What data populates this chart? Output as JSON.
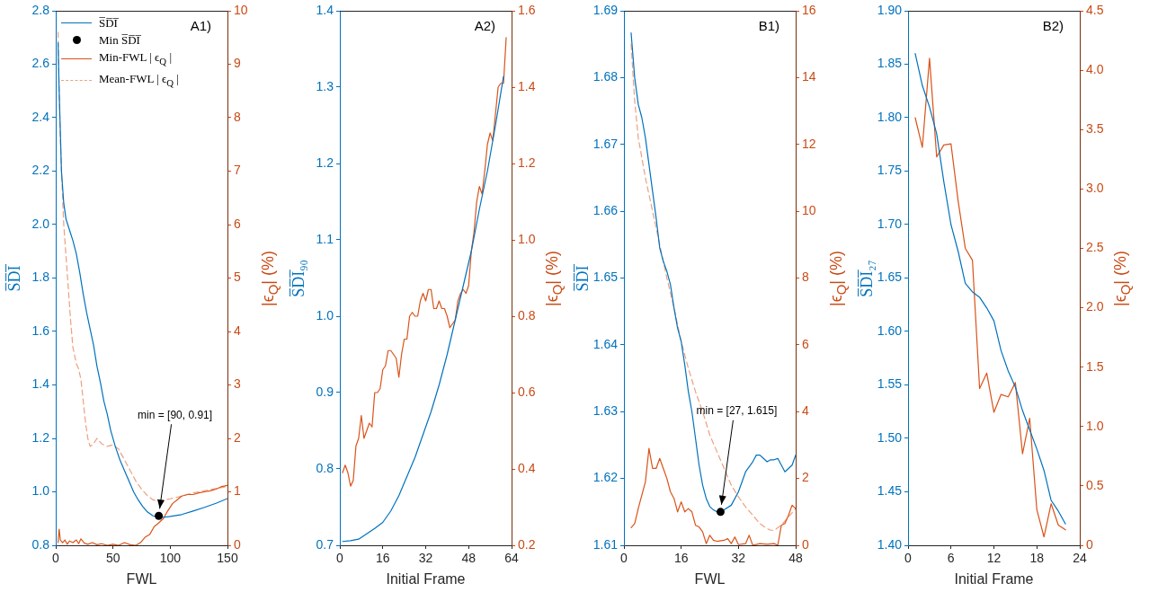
{
  "chart_data": [
    {
      "type": "line",
      "xlabel": "FWL",
      "ylabel": "S̅D̅I̅",
      "y2label": "|ϵ$_{Q}$| (%)",
      "legend": "top left",
      "annotations": [
        "A1)",
        {
          "text": "min = [90, 0.91]",
          "x": 90,
          "y": 0.91
        }
      ],
      "xlim": [
        0,
        150
      ],
      "xticks": [
        0,
        50,
        100,
        150
      ],
      "ylim": [
        0.8,
        2.8
      ],
      "yticks": [
        0.8,
        {
          "value": 1,
          "label": "1.0"
        },
        1.2,
        1.4,
        1.6,
        1.8,
        {
          "value": 2,
          "label": "2.0"
        },
        2.2,
        2.4,
        2.6,
        2.8
      ],
      "y2lim": [
        0,
        10
      ],
      "y2ticks": [
        0,
        1,
        2,
        3,
        4,
        5,
        6,
        7,
        8,
        9,
        10
      ],
      "series": [
        {
          "name": "S̅D̅I̅",
          "color": "#0072bd",
          "line_style": "solid",
          "x": [
            2,
            3,
            5,
            7,
            9,
            12,
            15,
            18,
            21,
            24,
            27,
            30,
            33,
            36,
            39,
            42,
            45,
            48,
            52,
            56,
            60,
            64,
            68,
            72,
            76,
            80,
            85,
            90,
            95,
            100,
            110,
            120,
            130,
            140,
            150
          ],
          "values": [
            2.68,
            2.5,
            2.2,
            2.08,
            2.02,
            1.98,
            1.94,
            1.89,
            1.82,
            1.74,
            1.67,
            1.61,
            1.55,
            1.47,
            1.41,
            1.34,
            1.29,
            1.23,
            1.17,
            1.12,
            1.08,
            1.04,
            1.0,
            0.97,
            0.945,
            0.925,
            0.91,
            0.905,
            0.905,
            0.908,
            0.915,
            0.928,
            0.942,
            0.957,
            0.975
          ]
        },
        {
          "name": "Min S̅D̅I̅",
          "type": "scatter",
          "marker": "circle",
          "color": "#000000",
          "x": [
            90
          ],
          "values": [
            0.91
          ]
        },
        {
          "name": "Min-FWL | ϵ$_{Q}$ |",
          "color": "#d95319",
          "axis": "y2",
          "line_style": "solid",
          "x": [
            2,
            3,
            4,
            6,
            8,
            10,
            12,
            15,
            18,
            20,
            22,
            25,
            28,
            32,
            36,
            40,
            45,
            50,
            55,
            60,
            65,
            70,
            74,
            78,
            82,
            86,
            90,
            94,
            98,
            102,
            106,
            110,
            115,
            120,
            125,
            130,
            135,
            140,
            145,
            150
          ],
          "values": [
            0.05,
            0.3,
            0.1,
            0.05,
            0.1,
            0.02,
            0.08,
            0.05,
            0.1,
            0.03,
            0.12,
            0.04,
            0.02,
            0.05,
            0.01,
            0.03,
            0.0,
            0.02,
            0.0,
            0.05,
            0.01,
            0.0,
            0.05,
            0.15,
            0.2,
            0.35,
            0.42,
            0.5,
            0.65,
            0.78,
            0.85,
            0.92,
            0.95,
            0.95,
            0.98,
            1.0,
            1.02,
            1.05,
            1.1,
            1.12
          ]
        },
        {
          "name": "Mean-FWL | ϵ$_{Q}$ |",
          "color": "#eda07e",
          "axis": "y2",
          "line_style": "dashed",
          "x": [
            2,
            3,
            4,
            5,
            7,
            9,
            11,
            13,
            15,
            18,
            20,
            22,
            24,
            26,
            28,
            30,
            33,
            36,
            40,
            45,
            50,
            55,
            60,
            65,
            70,
            75,
            80,
            85,
            90,
            95,
            100,
            110,
            120,
            130,
            140,
            150
          ],
          "values": [
            9.6,
            8.5,
            7.6,
            7.0,
            6.0,
            5.4,
            4.8,
            4.2,
            3.7,
            3.4,
            3.3,
            3.1,
            2.7,
            2.3,
            2.0,
            1.85,
            1.9,
            2.0,
            1.9,
            1.85,
            1.88,
            1.8,
            1.6,
            1.4,
            1.2,
            1.05,
            0.93,
            0.85,
            0.83,
            0.85,
            0.87,
            0.92,
            0.98,
            1.02,
            1.06,
            1.1
          ]
        }
      ]
    },
    {
      "type": "line",
      "xlabel": "Initial Frame",
      "ylabel": "S̅D̅I̅₉₀",
      "y2label": "|ϵ$_{Q}$| (%)",
      "annotations": [
        "A2)"
      ],
      "xlim": [
        0,
        64
      ],
      "xticks": [
        0,
        16,
        32,
        48,
        64
      ],
      "ylim": [
        0.7,
        1.4
      ],
      "yticks": [
        0.7,
        0.8,
        0.9,
        {
          "value": 1,
          "label": "1.0"
        },
        1.1,
        1.2,
        1.3,
        1.4
      ],
      "y2lim": [
        0.2,
        1.6
      ],
      "y2ticks": [
        0.2,
        0.4,
        0.6,
        0.8,
        {
          "value": 1,
          "label": "1.0"
        },
        1.2,
        1.4,
        1.6
      ],
      "series": [
        {
          "color": "#0072bd",
          "line_style": "solid",
          "x": [
            1,
            4,
            7,
            10,
            13,
            16,
            19,
            22,
            25,
            28,
            31,
            34,
            37,
            40,
            43,
            46,
            49,
            52,
            55,
            58,
            61
          ],
          "values": [
            0.705,
            0.706,
            0.708,
            0.715,
            0.722,
            0.73,
            0.745,
            0.765,
            0.79,
            0.815,
            0.845,
            0.875,
            0.91,
            0.95,
            0.995,
            1.04,
            1.085,
            1.14,
            1.19,
            1.25,
            1.314
          ]
        },
        {
          "color": "#d95319",
          "axis": "y2",
          "line_style": "solid",
          "x": [
            1,
            2,
            3,
            4,
            5,
            6,
            7,
            8,
            9,
            10,
            11,
            12,
            13,
            14,
            15,
            16,
            17,
            18,
            19,
            20,
            21,
            22,
            23,
            24,
            25,
            26,
            27,
            28,
            29,
            30,
            31,
            32,
            33,
            34,
            35,
            36,
            37,
            38,
            39,
            40,
            41,
            42,
            43,
            44,
            45,
            46,
            47,
            48,
            49,
            50,
            51,
            52,
            53,
            54,
            55,
            56,
            57,
            58,
            59,
            60,
            61,
            62
          ],
          "values": [
            0.39,
            0.41,
            0.39,
            0.355,
            0.37,
            0.46,
            0.48,
            0.54,
            0.48,
            0.5,
            0.52,
            0.51,
            0.6,
            0.6,
            0.61,
            0.66,
            0.67,
            0.71,
            0.71,
            0.7,
            0.69,
            0.64,
            0.7,
            0.74,
            0.74,
            0.8,
            0.81,
            0.8,
            0.8,
            0.84,
            0.86,
            0.84,
            0.87,
            0.87,
            0.82,
            0.82,
            0.84,
            0.82,
            0.82,
            0.8,
            0.77,
            0.78,
            0.79,
            0.84,
            0.86,
            0.87,
            0.86,
            0.88,
            0.97,
            1.02,
            1.1,
            1.14,
            1.12,
            1.18,
            1.25,
            1.28,
            1.26,
            1.33,
            1.4,
            1.41,
            1.41,
            1.53
          ]
        }
      ]
    },
    {
      "type": "line",
      "xlabel": "FWL",
      "ylabel": "S̅D̅I̅",
      "y2label": "|ϵ$_{Q}$| (%)",
      "annotations": [
        "B1)",
        {
          "text": "min = [27, 1.615]",
          "x": 27,
          "y": 1.615
        }
      ],
      "xlim": [
        0,
        48
      ],
      "xticks": [
        0,
        16,
        32,
        48
      ],
      "ylim": [
        1.61,
        1.69
      ],
      "yticks": [
        1.61,
        1.62,
        1.63,
        1.64,
        1.65,
        1.66,
        1.67,
        1.68,
        1.69
      ],
      "y2lim": [
        0,
        16
      ],
      "y2ticks": [
        0,
        2,
        4,
        6,
        8,
        10,
        12,
        14,
        16
      ],
      "series": [
        {
          "color": "#0072bd",
          "line_style": "solid",
          "x": [
            2,
            3,
            4,
            5,
            6,
            7,
            8,
            9,
            10,
            11,
            12,
            13,
            14,
            15,
            16,
            17,
            18,
            19,
            20,
            21,
            22,
            23,
            24,
            25,
            26,
            27,
            28,
            30,
            32,
            34,
            36,
            37,
            38,
            39,
            40,
            41,
            42,
            43,
            44,
            45,
            46,
            47,
            48
          ],
          "values": [
            1.6867,
            1.68,
            1.676,
            1.674,
            1.671,
            1.667,
            1.663,
            1.659,
            1.6545,
            1.6525,
            1.651,
            1.649,
            1.6455,
            1.6425,
            1.6405,
            1.637,
            1.633,
            1.63,
            1.626,
            1.622,
            1.619,
            1.617,
            1.6158,
            1.6153,
            1.615,
            1.615,
            1.6153,
            1.616,
            1.618,
            1.621,
            1.6225,
            1.6235,
            1.6235,
            1.623,
            1.6225,
            1.6228,
            1.6228,
            1.623,
            1.622,
            1.621,
            1.6215,
            1.622,
            1.6235
          ]
        },
        {
          "type": "scatter",
          "marker": "circle",
          "color": "#000000",
          "x": [
            27
          ],
          "values": [
            1.615
          ]
        },
        {
          "color": "#d95319",
          "axis": "y2",
          "line_style": "solid",
          "x": [
            2,
            3,
            4,
            5,
            6,
            7,
            8,
            9,
            10,
            11,
            12,
            13,
            14,
            15,
            16,
            17,
            18,
            19,
            20,
            21,
            22,
            23,
            24,
            25,
            26,
            28,
            29,
            30,
            31,
            32,
            34,
            35,
            36,
            38,
            40,
            42,
            43,
            44,
            45,
            46,
            47,
            48
          ],
          "values": [
            0.53,
            0.65,
            1.1,
            1.5,
            1.9,
            2.9,
            2.3,
            2.3,
            2.6,
            2.3,
            2.0,
            1.6,
            1.4,
            1.0,
            1.3,
            1.0,
            1.1,
            1.0,
            0.6,
            0.55,
            0.4,
            0.05,
            0.3,
            0.15,
            0.12,
            0.15,
            0.2,
            0.05,
            0.25,
            0.02,
            0.05,
            0.3,
            0.0,
            0.05,
            0.03,
            0.05,
            0.0,
            0.6,
            0.65,
            0.9,
            1.2,
            1.1
          ]
        },
        {
          "color": "#eda07e",
          "axis": "y2",
          "line_style": "dashed",
          "x": [
            2,
            3,
            4,
            6,
            8,
            10,
            12,
            14,
            16,
            18,
            20,
            22,
            24,
            26,
            28,
            30,
            32,
            34,
            36,
            38,
            40,
            41,
            42,
            44,
            46,
            48
          ],
          "values": [
            15.0,
            13.3,
            12.2,
            11.0,
            10.0,
            9.0,
            8.0,
            7.1,
            6.1,
            5.3,
            4.6,
            4.0,
            3.3,
            2.8,
            2.3,
            1.8,
            1.45,
            1.15,
            0.9,
            0.65,
            0.5,
            0.45,
            0.45,
            0.6,
            0.85,
            1.1
          ]
        }
      ]
    },
    {
      "type": "line",
      "xlabel": "Initial Frame",
      "ylabel": "S̅D̅I̅₂₇",
      "y2label": "|ϵ$_{Q}$| (%)",
      "annotations": [
        "B2)"
      ],
      "xlim": [
        0,
        24
      ],
      "xticks": [
        0,
        6,
        12,
        18,
        24
      ],
      "ylim": [
        1.4,
        1.9
      ],
      "yticks": [
        {
          "value": 1.4,
          "label": "1.40"
        },
        1.45,
        {
          "value": 1.5,
          "label": "1.50"
        },
        1.55,
        {
          "value": 1.6,
          "label": "1.60"
        },
        1.65,
        {
          "value": 1.7,
          "label": "1.70"
        },
        1.75,
        {
          "value": 1.8,
          "label": "1.80"
        },
        1.85,
        {
          "value": 1.9,
          "label": "1.90"
        }
      ],
      "y2lim": [
        0,
        4.5
      ],
      "y2ticks": [
        0,
        0.5,
        {
          "value": 1,
          "label": "1.0"
        },
        1.5,
        {
          "value": 2,
          "label": "2.0"
        },
        2.5,
        {
          "value": 3,
          "label": "3.0"
        },
        3.5,
        {
          "value": 4,
          "label": "4.0"
        },
        4.5
      ],
      "series": [
        {
          "color": "#0072bd",
          "line_style": "solid",
          "x": [
            1,
            2,
            3,
            4,
            5,
            6,
            7,
            8,
            9,
            10,
            11,
            12,
            13,
            14,
            15,
            16,
            17,
            18,
            19,
            20,
            21,
            22
          ],
          "values": [
            1.86,
            1.83,
            1.81,
            1.785,
            1.74,
            1.7,
            1.675,
            1.645,
            1.637,
            1.632,
            1.622,
            1.61,
            1.582,
            1.563,
            1.548,
            1.526,
            1.508,
            1.49,
            1.47,
            1.442,
            1.432,
            1.42
          ]
        },
        {
          "color": "#d95319",
          "axis": "y2",
          "line_style": "solid",
          "x": [
            1,
            2,
            3,
            4,
            5,
            6,
            7,
            8,
            9,
            10,
            11,
            12,
            13,
            14,
            15,
            16,
            17,
            18,
            19,
            20,
            21,
            22
          ],
          "values": [
            3.6,
            3.35,
            4.1,
            3.27,
            3.37,
            3.38,
            2.9,
            2.5,
            2.4,
            1.32,
            1.45,
            1.12,
            1.27,
            1.25,
            1.37,
            0.77,
            1.07,
            0.3,
            0.07,
            0.35,
            0.17,
            0.13
          ]
        }
      ]
    }
  ]
}
